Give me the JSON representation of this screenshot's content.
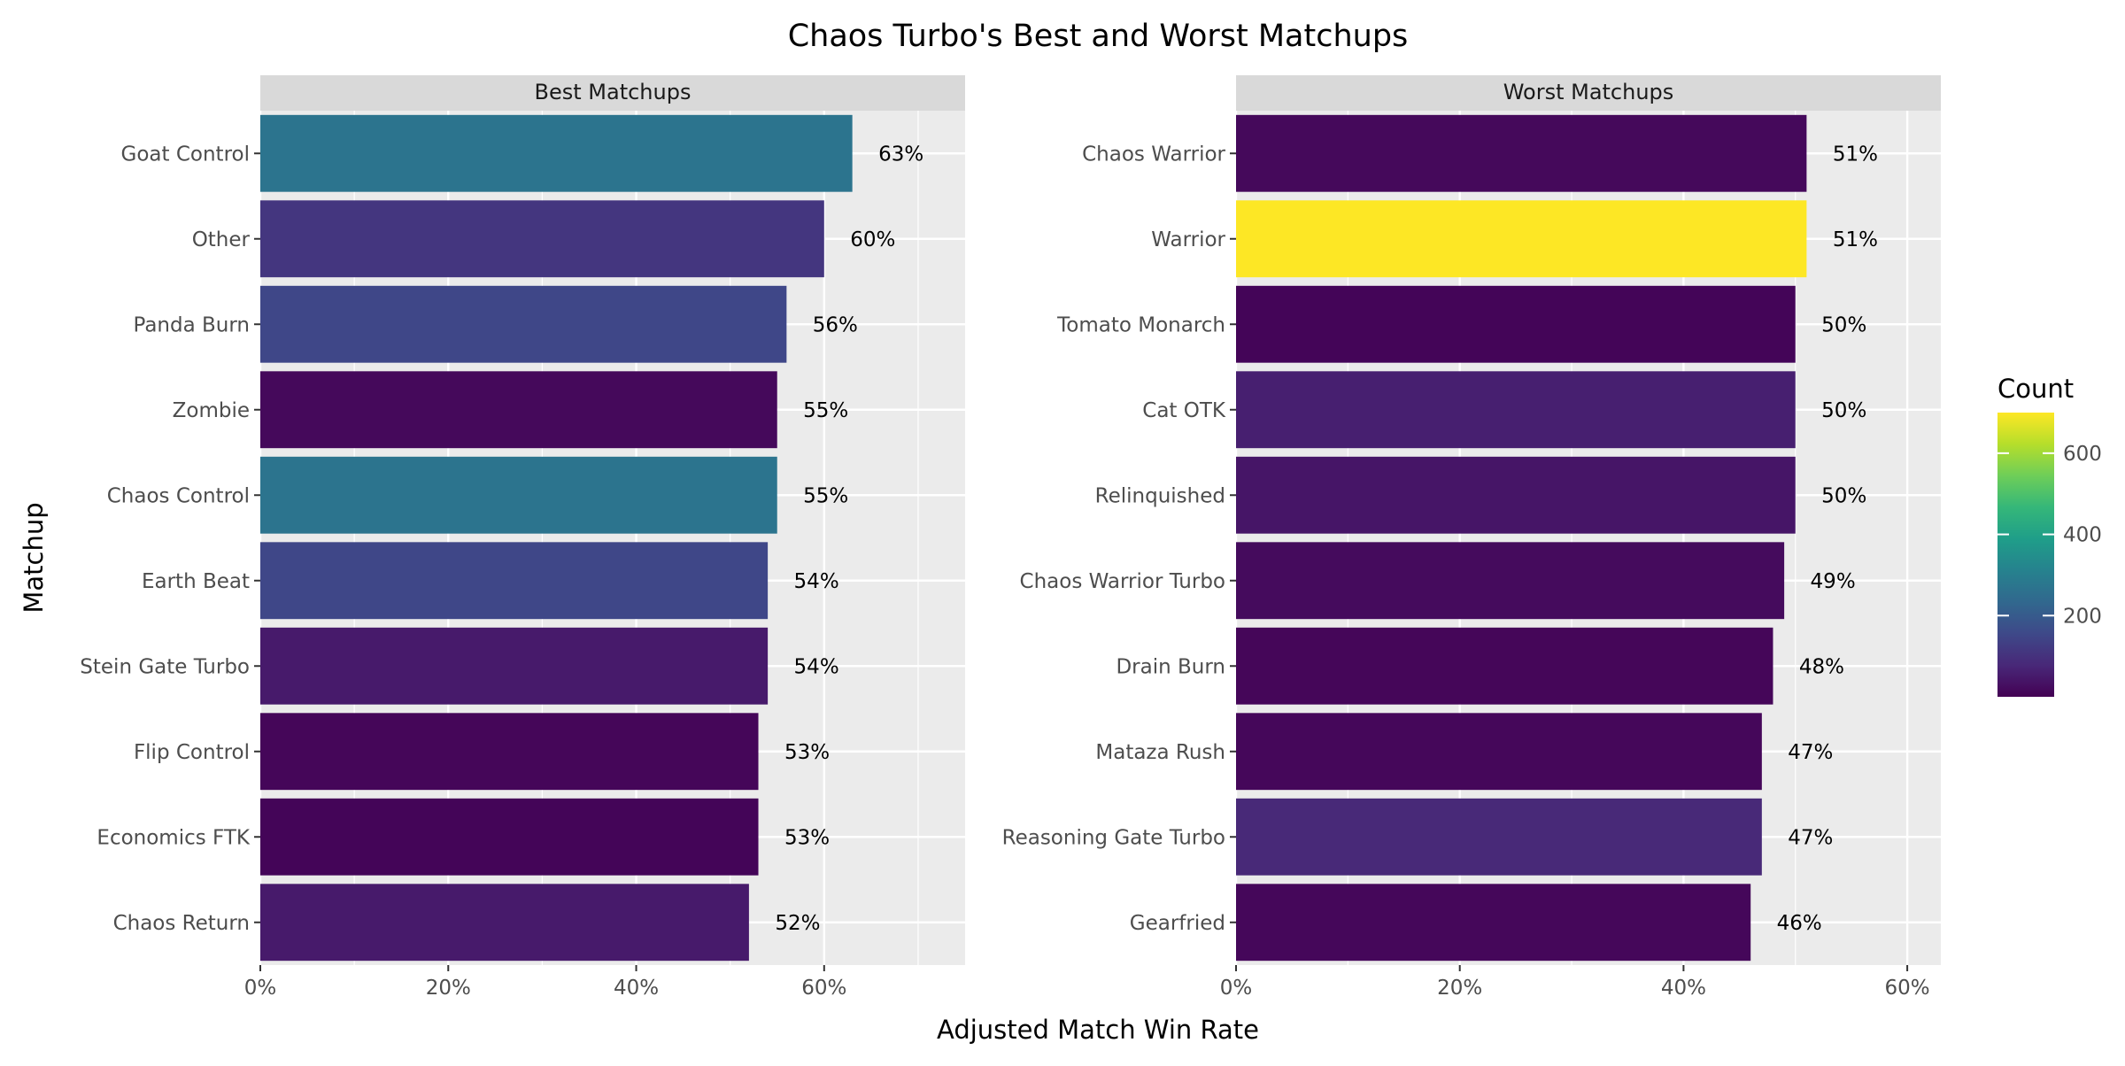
{
  "chart_data": {
    "type": "bar",
    "orientation": "horizontal",
    "faceted": true,
    "title": "Chaos Turbo's Best and Worst Matchups",
    "xlabel": "Adjusted Match Win Rate",
    "ylabel": "Matchup",
    "grid": true,
    "legend_position": "right",
    "legend": {
      "title": "Count",
      "ticks": [
        200,
        400,
        600
      ],
      "range": [
        0,
        700
      ],
      "palette": "viridis"
    },
    "panels": [
      {
        "title": "Best Matchups",
        "xlim": [
          0,
          0.75
        ],
        "x_ticks": [
          0,
          0.2,
          0.4,
          0.6
        ],
        "x_tick_labels": [
          "0%",
          "20%",
          "40%",
          "60%"
        ],
        "categories": [
          "Goat Control",
          "Other",
          "Panda Burn",
          "Zombie",
          "Chaos Control",
          "Earth Beat",
          "Stein Gate Turbo",
          "Flip Control",
          "Economics FTK",
          "Chaos Return"
        ],
        "values": [
          0.63,
          0.6,
          0.56,
          0.55,
          0.55,
          0.54,
          0.54,
          0.53,
          0.53,
          0.52
        ],
        "value_labels": [
          "63%",
          "60%",
          "56%",
          "55%",
          "55%",
          "54%",
          "54%",
          "53%",
          "53%",
          "52%"
        ],
        "counts": [
          270,
          110,
          150,
          15,
          270,
          150,
          50,
          10,
          8,
          50
        ]
      },
      {
        "title": "Worst Matchups",
        "xlim": [
          0,
          0.63
        ],
        "x_ticks": [
          0,
          0.2,
          0.4,
          0.6
        ],
        "x_tick_labels": [
          "0%",
          "20%",
          "40%",
          "60%"
        ],
        "categories": [
          "Chaos Warrior",
          "Warrior",
          "Tomato Monarch",
          "Cat OTK",
          "Relinquished",
          "Chaos Warrior Turbo",
          "Drain Burn",
          "Mataza Rush",
          "Reasoning Gate Turbo",
          "Gearfried"
        ],
        "values": [
          0.51,
          0.51,
          0.5,
          0.5,
          0.5,
          0.49,
          0.48,
          0.47,
          0.47,
          0.46
        ],
        "value_labels": [
          "51%",
          "51%",
          "50%",
          "50%",
          "50%",
          "49%",
          "48%",
          "47%",
          "47%",
          "46%"
        ],
        "counts": [
          15,
          700,
          8,
          60,
          40,
          20,
          10,
          12,
          80,
          12
        ]
      }
    ]
  }
}
